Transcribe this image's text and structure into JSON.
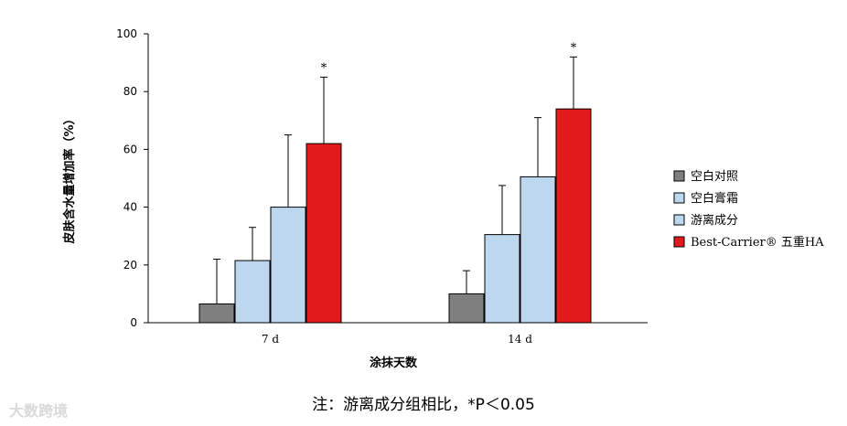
{
  "chart_data": {
    "type": "bar",
    "ylabel": "皮肤含水量增加率（%）",
    "xlabel": "涂抹天数",
    "ylim": [
      0,
      100
    ],
    "yticks": [
      0,
      20,
      40,
      60,
      80,
      100
    ],
    "categories": [
      "7 d",
      "14 d"
    ],
    "series": [
      {
        "name": "空白对照",
        "color": "#7f7f7f",
        "values": [
          6.5,
          10
        ],
        "errors": [
          15.5,
          8
        ],
        "sig": [
          false,
          false
        ]
      },
      {
        "name": "空白膏霜",
        "color": "#bdd7ee",
        "values": [
          21.5,
          30.5
        ],
        "errors": [
          11.5,
          17
        ],
        "sig": [
          false,
          false
        ]
      },
      {
        "name": "游离成分",
        "color": "#bdd7ee",
        "values": [
          40,
          50.5
        ],
        "errors": [
          25,
          20.5
        ],
        "sig": [
          false,
          false
        ]
      },
      {
        "name": "Best-Carrier® 五重HA",
        "color": "#e31a1c",
        "values": [
          62,
          74
        ],
        "errors": [
          23,
          18
        ],
        "sig": [
          true,
          true
        ]
      }
    ],
    "significance_marker": "*",
    "legend_position": "right",
    "grid": false
  },
  "footnote": "注：游离成分组相比，*P＜0.05",
  "watermark": "大数跨境"
}
